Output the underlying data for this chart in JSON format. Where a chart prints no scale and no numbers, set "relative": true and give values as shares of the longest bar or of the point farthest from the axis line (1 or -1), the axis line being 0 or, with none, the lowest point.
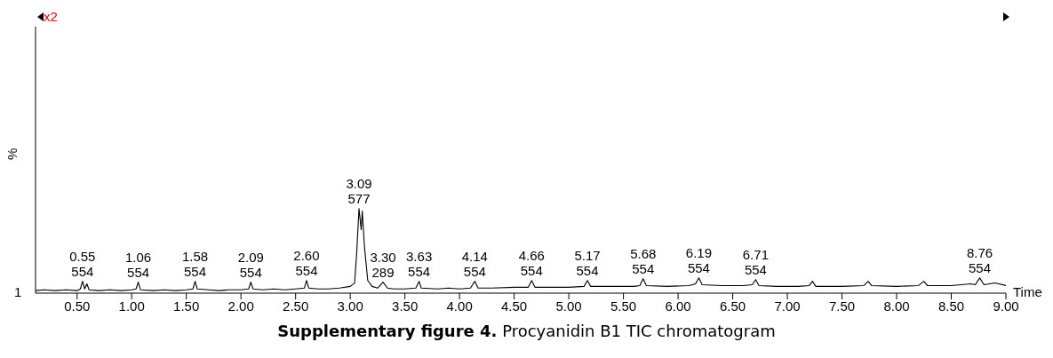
{
  "chart_data": {
    "type": "line",
    "relative": true,
    "title": "Supplementary figure 4.",
    "subtitle": "Procyanidin B1 TIC chromatogram",
    "xlabel": "Time",
    "ylabel": "%",
    "marker": "none",
    "xlim": [
      0.12,
      9.0
    ],
    "xticks": [
      {
        "value": 0.5,
        "label": "0.50"
      },
      {
        "value": 1.0,
        "label": "1.00"
      },
      {
        "value": 1.5,
        "label": "1.50"
      },
      {
        "value": 2.0,
        "label": "2.00"
      },
      {
        "value": 2.5,
        "label": "2.50"
      },
      {
        "value": 3.0,
        "label": "3.00"
      },
      {
        "value": 3.5,
        "label": "3.50"
      },
      {
        "value": 4.0,
        "label": "4.00"
      },
      {
        "value": 4.5,
        "label": "4.50"
      },
      {
        "value": 5.0,
        "label": "5.00"
      },
      {
        "value": 5.5,
        "label": "5.50"
      },
      {
        "value": 6.0,
        "label": "6.00"
      },
      {
        "value": 6.5,
        "label": "6.50"
      },
      {
        "value": 7.0,
        "label": "7.00"
      },
      {
        "value": 7.5,
        "label": "7.50"
      },
      {
        "value": 8.0,
        "label": "8.00"
      },
      {
        "value": 8.5,
        "label": "8.50"
      },
      {
        "value": 9.0,
        "label": "9.00"
      }
    ],
    "series": [
      {
        "color": "#000000",
        "x": [
          0.12,
          0.2,
          0.3,
          0.4,
          0.5,
          0.53,
          0.55,
          0.57,
          0.59,
          0.61,
          0.7,
          0.8,
          0.9,
          1.0,
          1.04,
          1.06,
          1.08,
          1.2,
          1.3,
          1.4,
          1.5,
          1.56,
          1.58,
          1.6,
          1.7,
          1.8,
          1.9,
          2.0,
          2.07,
          2.09,
          2.11,
          2.2,
          2.3,
          2.4,
          2.5,
          2.58,
          2.6,
          2.62,
          2.7,
          2.8,
          2.9,
          3.0,
          3.04,
          3.06,
          3.08,
          3.1,
          3.11,
          3.13,
          3.16,
          3.2,
          3.25,
          3.3,
          3.34,
          3.4,
          3.5,
          3.6,
          3.63,
          3.65,
          3.8,
          3.9,
          4.0,
          4.1,
          4.14,
          4.17,
          4.3,
          4.5,
          4.63,
          4.66,
          4.69,
          4.8,
          5.0,
          5.14,
          5.17,
          5.2,
          5.4,
          5.6,
          5.65,
          5.68,
          5.71,
          5.9,
          6.1,
          6.16,
          6.19,
          6.22,
          6.4,
          6.6,
          6.68,
          6.71,
          6.74,
          6.9,
          7.1,
          7.2,
          7.23,
          7.26,
          7.5,
          7.7,
          7.74,
          7.77,
          8.0,
          8.2,
          8.25,
          8.28,
          8.5,
          8.68,
          8.72,
          8.76,
          8.8,
          8.9,
          9.0
        ],
        "values": [
          0.03,
          0.04,
          0.03,
          0.04,
          0.03,
          0.05,
          0.14,
          0.05,
          0.11,
          0.04,
          0.03,
          0.04,
          0.03,
          0.04,
          0.05,
          0.13,
          0.04,
          0.03,
          0.04,
          0.03,
          0.04,
          0.05,
          0.14,
          0.05,
          0.04,
          0.03,
          0.04,
          0.04,
          0.05,
          0.13,
          0.05,
          0.04,
          0.05,
          0.04,
          0.05,
          0.06,
          0.15,
          0.06,
          0.05,
          0.05,
          0.06,
          0.08,
          0.12,
          0.5,
          1.0,
          0.75,
          0.97,
          0.55,
          0.15,
          0.08,
          0.06,
          0.13,
          0.06,
          0.05,
          0.05,
          0.06,
          0.14,
          0.06,
          0.05,
          0.06,
          0.05,
          0.06,
          0.14,
          0.06,
          0.06,
          0.07,
          0.07,
          0.15,
          0.07,
          0.07,
          0.07,
          0.08,
          0.15,
          0.08,
          0.08,
          0.08,
          0.09,
          0.17,
          0.09,
          0.08,
          0.09,
          0.11,
          0.18,
          0.1,
          0.09,
          0.09,
          0.1,
          0.16,
          0.09,
          0.08,
          0.08,
          0.09,
          0.14,
          0.08,
          0.08,
          0.09,
          0.14,
          0.09,
          0.08,
          0.09,
          0.14,
          0.09,
          0.09,
          0.11,
          0.1,
          0.18,
          0.1,
          0.12,
          0.09
        ]
      }
    ],
    "annotations": [
      "x2",
      "1",
      {
        "text": "0.55\n554",
        "x": 0.55,
        "y": 0.14
      },
      {
        "text": "1.06\n554",
        "x": 1.06,
        "y": 0.13
      },
      {
        "text": "1.58\n554",
        "x": 1.58,
        "y": 0.14
      },
      {
        "text": "2.09\n554",
        "x": 2.09,
        "y": 0.13
      },
      {
        "text": "2.60\n554",
        "x": 2.6,
        "y": 0.15
      },
      {
        "text": "3.09\n577",
        "x": 3.08,
        "y": 1.0
      },
      {
        "text": "3.30\n289",
        "x": 3.3,
        "y": 0.13
      },
      {
        "text": "3.63\n554",
        "x": 3.63,
        "y": 0.14
      },
      {
        "text": "4.14\n554",
        "x": 4.14,
        "y": 0.14
      },
      {
        "text": "4.66\n554",
        "x": 4.66,
        "y": 0.15
      },
      {
        "text": "5.17\n554",
        "x": 5.17,
        "y": 0.15
      },
      {
        "text": "5.68\n554",
        "x": 5.68,
        "y": 0.17
      },
      {
        "text": "6.19\n554",
        "x": 6.19,
        "y": 0.18
      },
      {
        "text": "6.71\n554",
        "x": 6.71,
        "y": 0.16
      },
      {
        "text": "8.76\n554",
        "x": 8.76,
        "y": 0.18
      }
    ]
  }
}
